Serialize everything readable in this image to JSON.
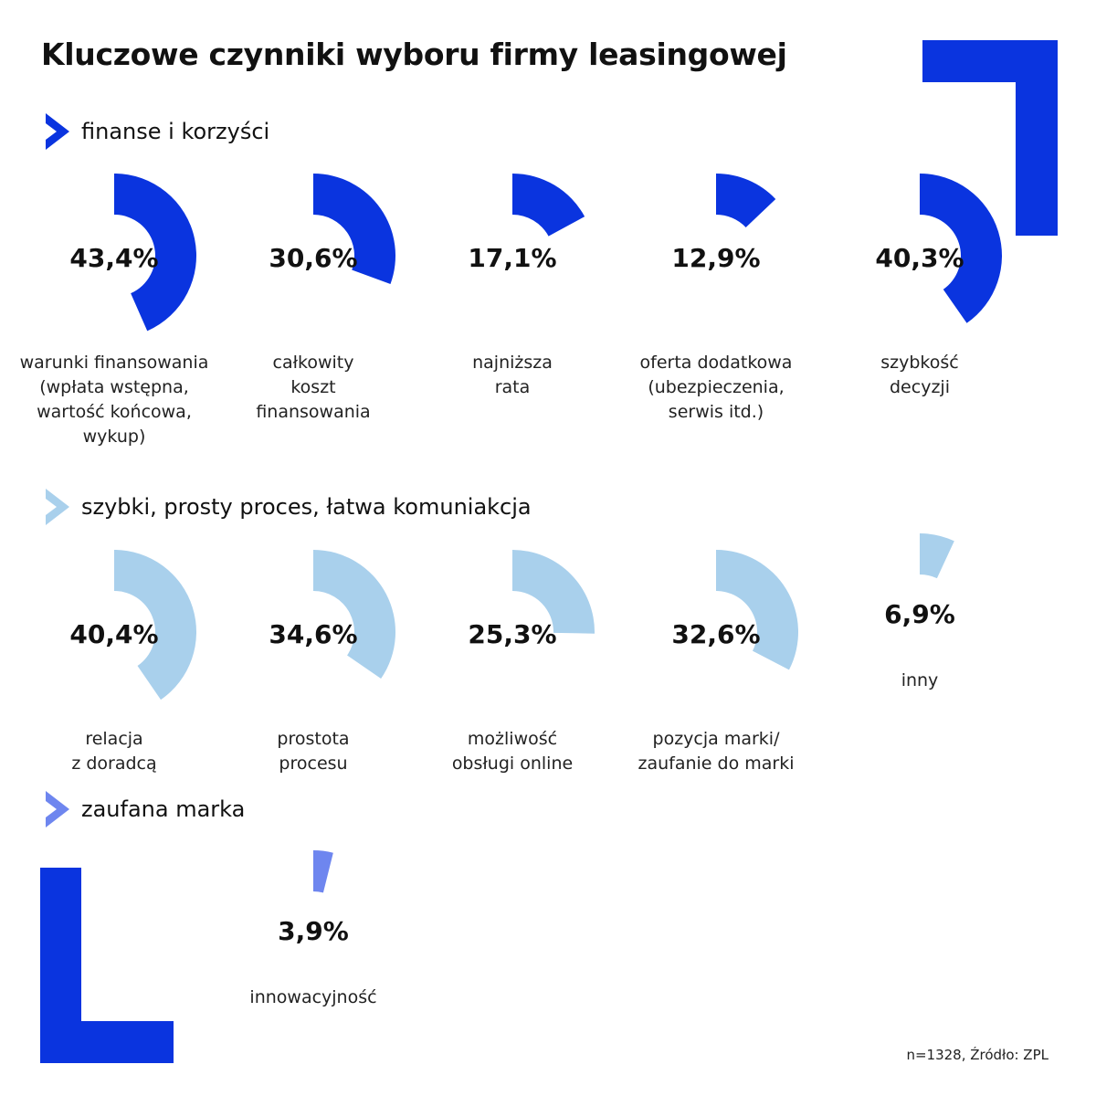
{
  "title": "Kluczowe czynniki wyboru firmy leasingowej",
  "source_note": "n=1328, Źródło: ZPL",
  "colors": {
    "brand": "#0a34df",
    "light": "#a9d0ec",
    "medium": "#6e86ef"
  },
  "chart_data": {
    "type": "radial-bar",
    "unit": "%",
    "groups": [
      {
        "name": "finanse i korzyści",
        "color": "#0a34df",
        "items": [
          {
            "label": "warunki finansowania\n(wpłata wstępna,\nwartość końcowa,\nwykup)",
            "value": 43.4,
            "display": "43,4%"
          },
          {
            "label": "całkowity\nkoszt\nfinansowania",
            "value": 30.6,
            "display": "30,6%"
          },
          {
            "label": "najniższa\nrata",
            "value": 17.1,
            "display": "17,1%"
          },
          {
            "label": "oferta dodatkowa\n(ubezpieczenia,\nserwis itd.)",
            "value": 12.9,
            "display": "12,9%"
          },
          {
            "label": "szybkość\ndecyzji",
            "value": 40.3,
            "display": "40,3%"
          }
        ]
      },
      {
        "name": "szybki, prosty proces, łatwa komuniakcja",
        "color": "#a9d0ec",
        "items": [
          {
            "label": "relacja\nz doradcą",
            "value": 40.4,
            "display": "40,4%"
          },
          {
            "label": "prostota\nprocesu",
            "value": 34.6,
            "display": "34,6%"
          },
          {
            "label": "możliwość\nobsługi online",
            "value": 25.3,
            "display": "25,3%"
          },
          {
            "label": "pozycja marki/\nzaufanie do marki",
            "value": 32.6,
            "display": "32,6%"
          },
          {
            "label": "inny",
            "value": 6.9,
            "display": "6,9%"
          }
        ]
      },
      {
        "name": "zaufana marka",
        "color": "#6e86ef",
        "items": [
          {
            "label": "innowacyjność",
            "value": 3.9,
            "display": "3,9%"
          }
        ]
      }
    ]
  }
}
